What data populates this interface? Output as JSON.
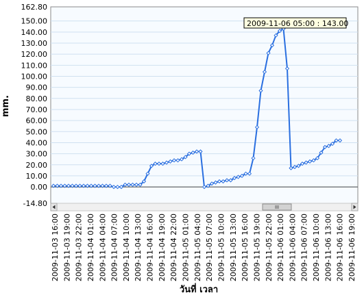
{
  "chart_data": {
    "type": "line",
    "title": "",
    "xlabel": "วันที่ เวลา",
    "ylabel": "mm.",
    "ylim": [
      -14.8,
      162.8
    ],
    "y_ticks": [
      "162.80",
      "150.00",
      "140.00",
      "130.00",
      "120.00",
      "110.00",
      "100.00",
      "90.00",
      "80.00",
      "70.00",
      "60.00",
      "50.00",
      "40.00",
      "30.00",
      "20.00",
      "10.00",
      "0.00",
      "-14.80"
    ],
    "x_tick_labels": [
      "2009-11-03 16:00",
      "2009-11-03 19:00",
      "2009-11-03 22:00",
      "2009-11-04 01:00",
      "2009-11-04 04:00",
      "2009-11-04 07:00",
      "2009-11-04 10:00",
      "2009-11-04 13:00",
      "2009-11-04 16:00",
      "2009-11-04 19:00",
      "2009-11-04 22:00",
      "2009-11-05 01:00",
      "2009-11-05 04:00",
      "2009-11-05 07:00",
      "2009-11-05 10:00",
      "2009-11-05 13:00",
      "2009-11-05 16:00",
      "2009-11-05 19:00",
      "2009-11-05 22:00",
      "2009-11-06 01:00",
      "2009-11-06 04:00",
      "2009-11-06 07:00",
      "2009-11-06 10:00",
      "2009-11-06 13:00",
      "2009-11-06 16:00",
      "2009-11-06 19:00"
    ],
    "grid": true,
    "series": [
      {
        "color": "#2a6fe0",
        "x": [
          "2009-11-03 16:00",
          "2009-11-03 17:00",
          "2009-11-03 18:00",
          "2009-11-03 19:00",
          "2009-11-03 20:00",
          "2009-11-03 21:00",
          "2009-11-03 22:00",
          "2009-11-03 23:00",
          "2009-11-04 00:00",
          "2009-11-04 01:00",
          "2009-11-04 02:00",
          "2009-11-04 03:00",
          "2009-11-04 04:00",
          "2009-11-04 05:00",
          "2009-11-04 06:00",
          "2009-11-04 07:00",
          "2009-11-04 08:00",
          "2009-11-04 09:00",
          "2009-11-04 10:00",
          "2009-11-04 11:00",
          "2009-11-04 12:00",
          "2009-11-04 13:00",
          "2009-11-04 14:00",
          "2009-11-04 15:00",
          "2009-11-04 16:00",
          "2009-11-04 17:00",
          "2009-11-04 18:00",
          "2009-11-04 19:00",
          "2009-11-04 20:00",
          "2009-11-04 21:00",
          "2009-11-04 22:00",
          "2009-11-04 23:00",
          "2009-11-05 00:00",
          "2009-11-05 01:00",
          "2009-11-05 02:00",
          "2009-11-05 03:00",
          "2009-11-05 04:00",
          "2009-11-05 05:00",
          "2009-11-05 06:00",
          "2009-11-05 07:00",
          "2009-11-05 08:00",
          "2009-11-05 09:00",
          "2009-11-05 10:00",
          "2009-11-05 11:00",
          "2009-11-05 12:00",
          "2009-11-05 13:00",
          "2009-11-05 14:00",
          "2009-11-05 15:00",
          "2009-11-05 16:00",
          "2009-11-05 17:00",
          "2009-11-05 18:00",
          "2009-11-05 19:00",
          "2009-11-05 20:00",
          "2009-11-05 21:00",
          "2009-11-05 22:00",
          "2009-11-05 23:00",
          "2009-11-06 00:00",
          "2009-11-06 01:00",
          "2009-11-06 02:00",
          "2009-11-06 03:00",
          "2009-11-06 04:00",
          "2009-11-06 05:00",
          "2009-11-06 06:00",
          "2009-11-06 07:00",
          "2009-11-06 08:00",
          "2009-11-06 09:00",
          "2009-11-06 10:00",
          "2009-11-06 11:00",
          "2009-11-06 12:00",
          "2009-11-06 13:00",
          "2009-11-06 14:00",
          "2009-11-06 15:00",
          "2009-11-06 16:00",
          "2009-11-06 17:00",
          "2009-11-06 18:00",
          "2009-11-06 19:00",
          "2009-11-06 20:00"
        ],
        "y": [
          1,
          1,
          1,
          1,
          1,
          1,
          1,
          1,
          1,
          1,
          1,
          1,
          1,
          1,
          1,
          1,
          0,
          0,
          0,
          2,
          2,
          2,
          2,
          2,
          5,
          12,
          19,
          21,
          21,
          21,
          22,
          23,
          24,
          24,
          25,
          27,
          30,
          31,
          32,
          32,
          0,
          1,
          3,
          4,
          5,
          5,
          6,
          6,
          8,
          9,
          10,
          12,
          12,
          26,
          54,
          87,
          104,
          121,
          128,
          137,
          141,
          143,
          107,
          17,
          18,
          19,
          21,
          22,
          23,
          24,
          26,
          31,
          36,
          37,
          39,
          42,
          42
        ]
      }
    ],
    "annotation": "2009-11-06 05:00 : 143.00"
  }
}
